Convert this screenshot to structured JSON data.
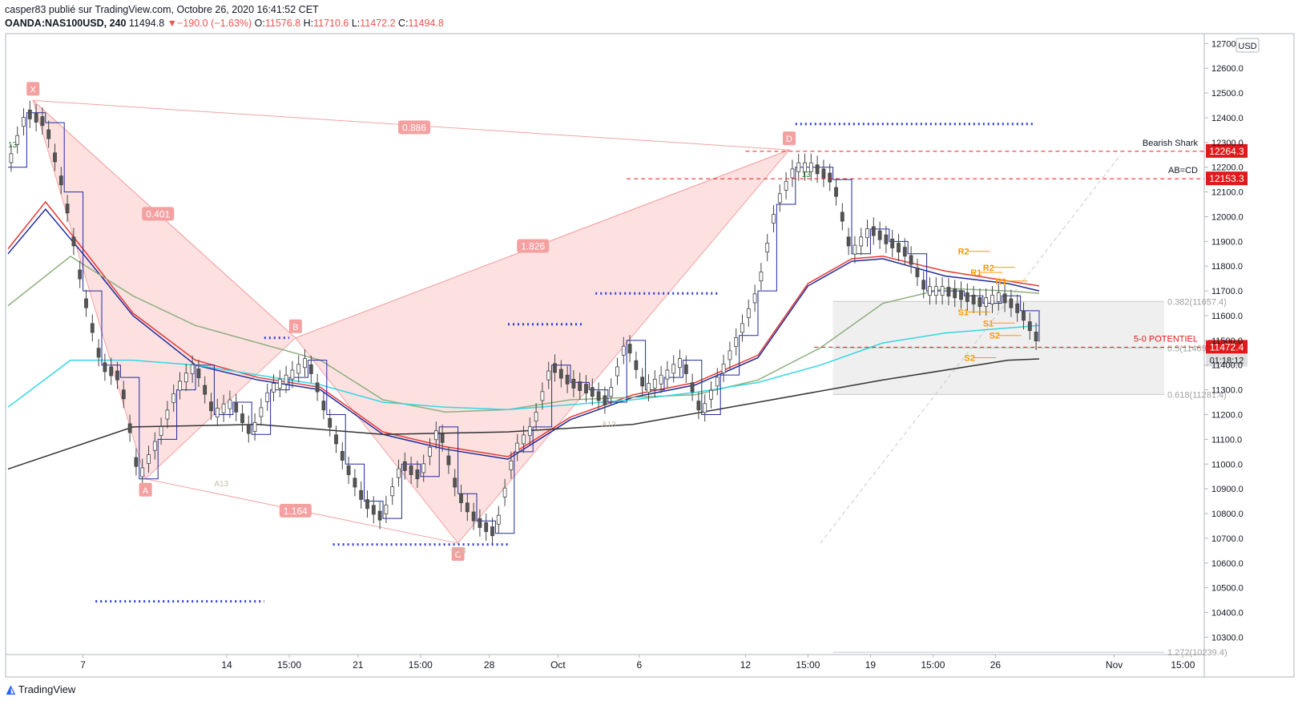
{
  "header": {
    "line1": "casper83 publié sur TradingView.com, Octobre 26, 2020 16:41:52 CET",
    "symbol": "OANDA:NAS100USD, 240",
    "last": "11494.8",
    "change_arrow": "▼",
    "change": "−190.0 (−1.63%)",
    "o_label": "O:",
    "o": "11576.8",
    "h_label": "H:",
    "h": "11710.6",
    "l_label": "L:",
    "l": "11472.2",
    "c_label": "C:",
    "c": "11494.8"
  },
  "brand": {
    "label": "TradingView",
    "icon": "tradingview-logo-icon"
  },
  "colors": {
    "bull": "#131722",
    "pattern": "#f8a9a9",
    "price_tag": "#e0191b",
    "accent": "#2962ff"
  },
  "chart_data": {
    "type": "line",
    "title": "",
    "currency": "USD",
    "ylim": [
      10230,
      12740
    ],
    "yticks": [
      12700,
      12600,
      12500,
      12400,
      12300,
      12200,
      12100,
      12000,
      11900,
      11800,
      11700,
      11600,
      11500,
      11400,
      11300,
      11200,
      11100,
      11000,
      10900,
      10800,
      10700,
      10600,
      10500,
      10400,
      10300
    ],
    "xticks": [
      "7",
      "14",
      "15:00",
      "21",
      "15:00",
      "28",
      "Oct",
      "6",
      "12",
      "15:00",
      "19",
      "15:00",
      "26",
      "Nov",
      "15:00"
    ],
    "price_series": {
      "name": "",
      "x": [
        0,
        3,
        6,
        9,
        12,
        15,
        18,
        21,
        24,
        27,
        30,
        33,
        36,
        39,
        42,
        45,
        48,
        51,
        54,
        57,
        60,
        63,
        66,
        69,
        72,
        75,
        78,
        81,
        84,
        87,
        90,
        93,
        96,
        99,
        102,
        105,
        108,
        111,
        114,
        117,
        120,
        123,
        126,
        129,
        132,
        135,
        138,
        141,
        144,
        147,
        150,
        153,
        156,
        159,
        162,
        165
      ],
      "y": [
        12200,
        12420,
        12380,
        12100,
        11700,
        11400,
        11350,
        10940,
        11100,
        11300,
        11400,
        11200,
        11250,
        11120,
        11300,
        11350,
        11420,
        11200,
        11000,
        10850,
        10780,
        11000,
        10950,
        11150,
        10880,
        10770,
        10720,
        11050,
        11150,
        11400,
        11330,
        11300,
        11250,
        11500,
        11300,
        11350,
        11420,
        11200,
        11360,
        11520,
        11700,
        12050,
        12200,
        12200,
        12150,
        11850,
        11950,
        11900,
        11850,
        11700,
        11700,
        11680,
        11650,
        11680,
        11620,
        11495
      ]
    },
    "moving_averages": [
      {
        "name": "",
        "color": "#1f2a9c",
        "x": [
          0,
          6,
          12,
          20,
          30,
          40,
          50,
          60,
          70,
          80,
          90,
          100,
          110,
          120,
          128,
          135,
          140,
          150,
          160,
          165
        ],
        "y": [
          11850,
          12030,
          11850,
          11600,
          11400,
          11340,
          11300,
          11120,
          11060,
          11020,
          11180,
          11270,
          11320,
          11430,
          11720,
          11820,
          11830,
          11760,
          11730,
          11700
        ]
      },
      {
        "name": "",
        "color": "#e53935",
        "x": [
          0,
          6,
          12,
          20,
          30,
          40,
          50,
          60,
          70,
          80,
          90,
          100,
          110,
          120,
          128,
          135,
          140,
          150,
          160,
          165
        ],
        "y": [
          11870,
          12060,
          11870,
          11610,
          11420,
          11350,
          11310,
          11130,
          11070,
          11030,
          11190,
          11280,
          11330,
          11440,
          11730,
          11830,
          11840,
          11780,
          11740,
          11720
        ]
      },
      {
        "name": "",
        "color": "#8fae7f",
        "x": [
          0,
          10,
          20,
          30,
          40,
          50,
          60,
          70,
          80,
          90,
          100,
          110,
          120,
          130,
          140,
          150,
          160,
          165
        ],
        "y": [
          11640,
          11840,
          11680,
          11560,
          11490,
          11420,
          11260,
          11210,
          11220,
          11260,
          11270,
          11280,
          11340,
          11470,
          11650,
          11710,
          11700,
          11690
        ]
      },
      {
        "name": "",
        "color": "#33d6e3",
        "x": [
          0,
          10,
          20,
          30,
          40,
          50,
          60,
          70,
          80,
          90,
          100,
          110,
          120,
          130,
          140,
          150,
          160,
          165
        ],
        "y": [
          11230,
          11420,
          11420,
          11400,
          11360,
          11320,
          11250,
          11230,
          11220,
          11240,
          11260,
          11290,
          11330,
          11400,
          11490,
          11530,
          11550,
          11560
        ]
      },
      {
        "name": "",
        "color": "#333333",
        "x": [
          0,
          20,
          40,
          60,
          80,
          100,
          120,
          140,
          160,
          165
        ],
        "y": [
          10980,
          11150,
          11160,
          11120,
          11130,
          11160,
          11250,
          11340,
          11420,
          11425
        ]
      }
    ],
    "harmonic_pattern": {
      "name": "Bearish Shark",
      "points": [
        {
          "label": "X",
          "x": 4,
          "y": 12470
        },
        {
          "label": "A",
          "x": 22,
          "y": 10940
        },
        {
          "label": "B",
          "x": 46,
          "y": 11510
        },
        {
          "label": "C",
          "x": 72,
          "y": 10680
        },
        {
          "label": "D",
          "x": 125,
          "y": 12270
        }
      ],
      "ratios": [
        {
          "label": "0.886",
          "x": 65,
          "y": 12360
        },
        {
          "label": "0.401",
          "x": 24,
          "y": 12010
        },
        {
          "label": "1.826",
          "x": 84,
          "y": 11880
        },
        {
          "label": "1.164",
          "x": 46,
          "y": 10810
        }
      ]
    },
    "levels": [
      {
        "label": "Bearish Shark",
        "price": 12264.3,
        "tag": "12264.3",
        "x_from": 118
      },
      {
        "label": "AB=CD",
        "price": 12153.3,
        "tag": "12153.3",
        "x_from": 99
      },
      {
        "label": "5-0 POTENTIEL",
        "price": 11472.4,
        "tag": "11472.4",
        "x_from": 129
      }
    ],
    "fib_zone": {
      "levels": [
        {
          "label": "0.382(11657.4)",
          "price": 11657.4
        },
        {
          "label": "0.5(11469.4)",
          "price": 11469.4
        },
        {
          "label": "0.618(11281.4)",
          "price": 11281.4
        },
        {
          "label": "1.272(10239.4)",
          "price": 10239.4
        }
      ],
      "x_from": 132,
      "x_to": 185
    },
    "pivots": [
      {
        "label": "R2",
        "price": 11860,
        "color": "#ff9800"
      },
      {
        "label": "R2",
        "price": 11795,
        "color": "#ff9800"
      },
      {
        "label": "R1",
        "price": 11775,
        "color": "#ff9800"
      },
      {
        "label": "R1",
        "price": 11740,
        "color": "#ff9800"
      },
      {
        "label": "S1",
        "price": 11615,
        "color": "#ff9800"
      },
      {
        "label": "S1",
        "price": 11570,
        "color": "#ff9800"
      },
      {
        "label": "S2",
        "price": 11520,
        "color": "#ff9800"
      },
      {
        "label": "S2",
        "price": 11430,
        "color": "#ff9800"
      }
    ],
    "blue_levels": [
      {
        "price": 12375,
        "x_from": 126,
        "x_to": 164
      },
      {
        "price": 11690,
        "x_from": 94,
        "x_to": 114
      },
      {
        "price": 11565,
        "x_from": 80,
        "x_to": 92
      },
      {
        "price": 11510,
        "x_from": 41,
        "x_to": 45
      },
      {
        "price": 10675,
        "x_from": 52,
        "x_to": 80
      },
      {
        "price": 10445,
        "x_from": 14,
        "x_to": 41
      }
    ],
    "last_price_tag": "11472.4",
    "countdown": "01:18:12",
    "annotations": [
      "A13",
      "A13",
      "A13",
      "13",
      "13"
    ]
  }
}
